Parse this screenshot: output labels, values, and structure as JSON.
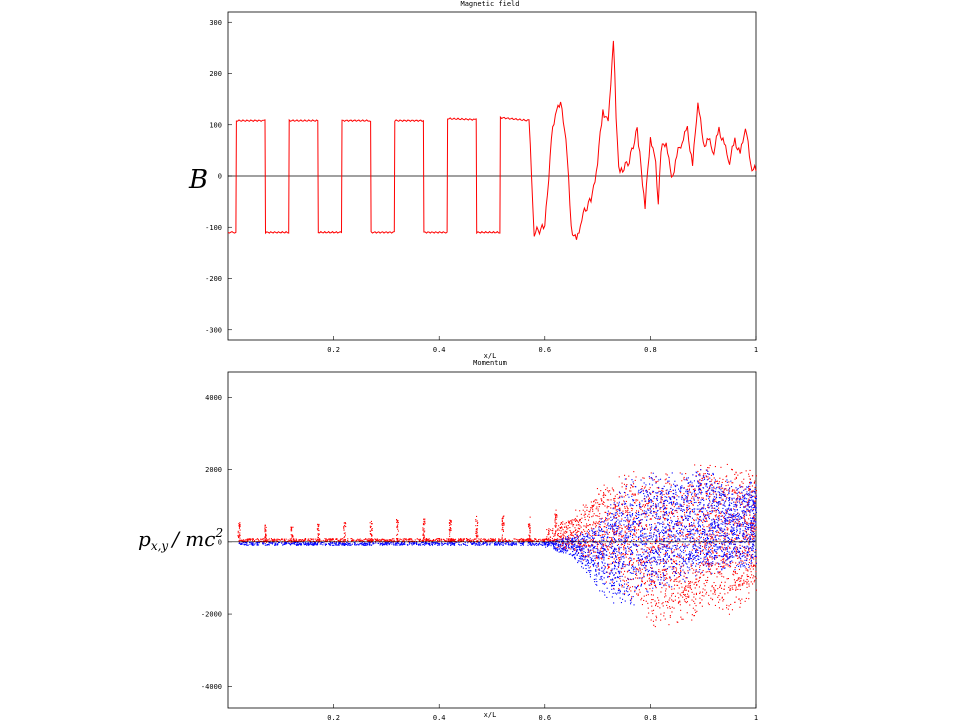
{
  "chart_data": [
    {
      "type": "line",
      "title": "Magnetic field",
      "xlabel": "x/L",
      "ylabel": "B",
      "xlim": [
        0,
        1
      ],
      "ylim": [
        -320,
        320
      ],
      "xticks": [
        0.2,
        0.4,
        0.6,
        0.8,
        1
      ],
      "xtick_labels": [
        "0.2",
        "0.4",
        "0.6",
        "0.8",
        "1"
      ],
      "yticks": [
        300,
        200,
        100,
        0,
        -100,
        -200,
        -300
      ],
      "ytick_labels": [
        "300",
        "200",
        "100",
        "0",
        "-100",
        "-200",
        "-300"
      ],
      "zero_line": true,
      "series_color": "#ff0000",
      "x": [
        0.0,
        0.015,
        0.016,
        0.07,
        0.071,
        0.115,
        0.116,
        0.17,
        0.171,
        0.215,
        0.216,
        0.27,
        0.271,
        0.315,
        0.316,
        0.37,
        0.371,
        0.415,
        0.416,
        0.47,
        0.471,
        0.515,
        0.516,
        0.57,
        0.58,
        0.6,
        0.615,
        0.625,
        0.63,
        0.64,
        0.65,
        0.66,
        0.67,
        0.69,
        0.7,
        0.71,
        0.72,
        0.73,
        0.735,
        0.74,
        0.745,
        0.76,
        0.775,
        0.78,
        0.79,
        0.8,
        0.81,
        0.815,
        0.82,
        0.83,
        0.84,
        0.85,
        0.86,
        0.87,
        0.88,
        0.89,
        0.9,
        0.91,
        0.92,
        0.93,
        0.94,
        0.95,
        0.96,
        0.97,
        0.98,
        0.99,
        1.0
      ],
      "y": [
        -110,
        -110,
        108,
        108,
        -110,
        -110,
        108,
        108,
        -110,
        -110,
        108,
        108,
        -110,
        -110,
        108,
        108,
        -110,
        -110,
        112,
        110,
        -110,
        -110,
        114,
        108,
        -110,
        -100,
        100,
        130,
        140,
        80,
        -100,
        -130,
        -80,
        -40,
        30,
        130,
        100,
        270,
        120,
        20,
        10,
        30,
        90,
        40,
        -60,
        80,
        20,
        -60,
        50,
        70,
        -10,
        40,
        70,
        90,
        20,
        150,
        60,
        70,
        50,
        90,
        60,
        30,
        70,
        40,
        100,
        20,
        10
      ]
    },
    {
      "type": "scatter",
      "title": "Momentum",
      "xlabel": "x/L",
      "ylabel": "p_{x,y} / mc^2",
      "ylabel_main": "p",
      "ylabel_sub": "x,y",
      "ylabel_den": "/ mc",
      "ylabel_sup": "2",
      "xlim": [
        0,
        1
      ],
      "ylim": [
        -4600,
        4700
      ],
      "xticks": [
        0.2,
        0.4,
        0.6,
        0.8,
        1
      ],
      "xtick_labels": [
        "0.2",
        "0.4",
        "0.6",
        "0.8",
        "1"
      ],
      "yticks": [
        4000,
        2000,
        0,
        -2000,
        -4000
      ],
      "ytick_labels": [
        "4000",
        "2000",
        "0",
        "-2000",
        "-4000"
      ],
      "zero_line": true,
      "series": [
        {
          "color": "#ff0000",
          "spike_x": [
            0.02,
            0.07,
            0.12,
            0.17,
            0.22,
            0.27,
            0.32,
            0.37,
            0.42,
            0.47,
            0.52,
            0.57,
            0.62
          ],
          "spike_height": [
            600,
            520,
            480,
            500,
            560,
            620,
            640,
            680,
            700,
            720,
            760,
            800,
            900
          ],
          "envelope_x": [
            0.6,
            0.65,
            0.7,
            0.75,
            0.8,
            0.85,
            0.9,
            0.95,
            1.0
          ],
          "envelope_max": [
            400,
            800,
            1600,
            2000,
            2200,
            2000,
            2400,
            2300,
            2200
          ],
          "envelope_min": [
            -100,
            -300,
            -1000,
            -1600,
            -2500,
            -2400,
            -2000,
            -2200,
            -1500
          ]
        },
        {
          "color": "#0000ff",
          "envelope_x": [
            0.6,
            0.65,
            0.7,
            0.75,
            0.8,
            0.85,
            0.9,
            0.95,
            1.0
          ],
          "envelope_max": [
            50,
            200,
            600,
            1800,
            2000,
            2000,
            2200,
            1700,
            1800
          ],
          "envelope_min": [
            -150,
            -400,
            -1400,
            -2000,
            -1500,
            -1200,
            -1000,
            -900,
            -700
          ]
        }
      ]
    }
  ]
}
